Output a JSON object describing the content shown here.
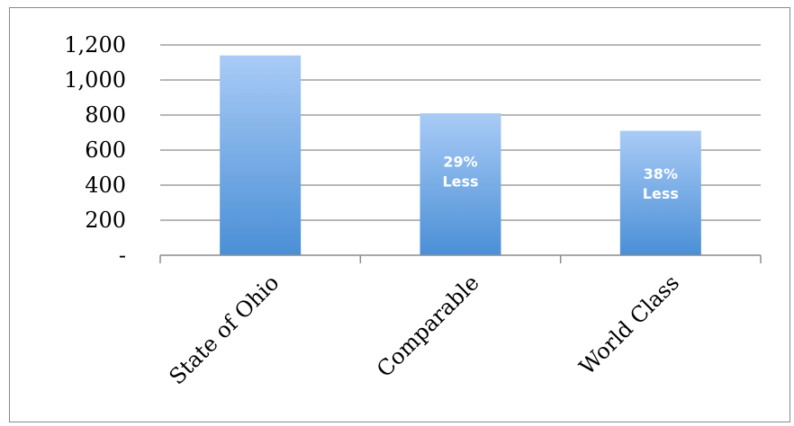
{
  "chart_data": {
    "type": "bar",
    "title": "",
    "xlabel": "",
    "ylabel": "",
    "categories": [
      "State of Ohio",
      "Comparable",
      "World Class"
    ],
    "values": [
      1140,
      810,
      710
    ],
    "ylim": [
      0,
      1200
    ],
    "yticks": [
      {
        "value": 0,
        "label": "-"
      },
      {
        "value": 200,
        "label": "200"
      },
      {
        "value": 400,
        "label": "400"
      },
      {
        "value": 600,
        "label": "600"
      },
      {
        "value": 800,
        "label": "800"
      },
      {
        "value": 1000,
        "label": "1,000"
      },
      {
        "value": 1200,
        "label": "1,200"
      }
    ],
    "grid": true,
    "legend": "none",
    "bar_annotations": [
      {
        "category": "Comparable",
        "lines": [
          "29%",
          "Less"
        ],
        "value_center": 480
      },
      {
        "category": "World Class",
        "lines": [
          "38%",
          "Less"
        ],
        "value_center": 410
      }
    ],
    "colors": {
      "bar_top": "#a9cbf6",
      "bar_bottom": "#4a8fd6",
      "gridline": "#8c8c8c",
      "axis": "#8c8c8c"
    }
  }
}
